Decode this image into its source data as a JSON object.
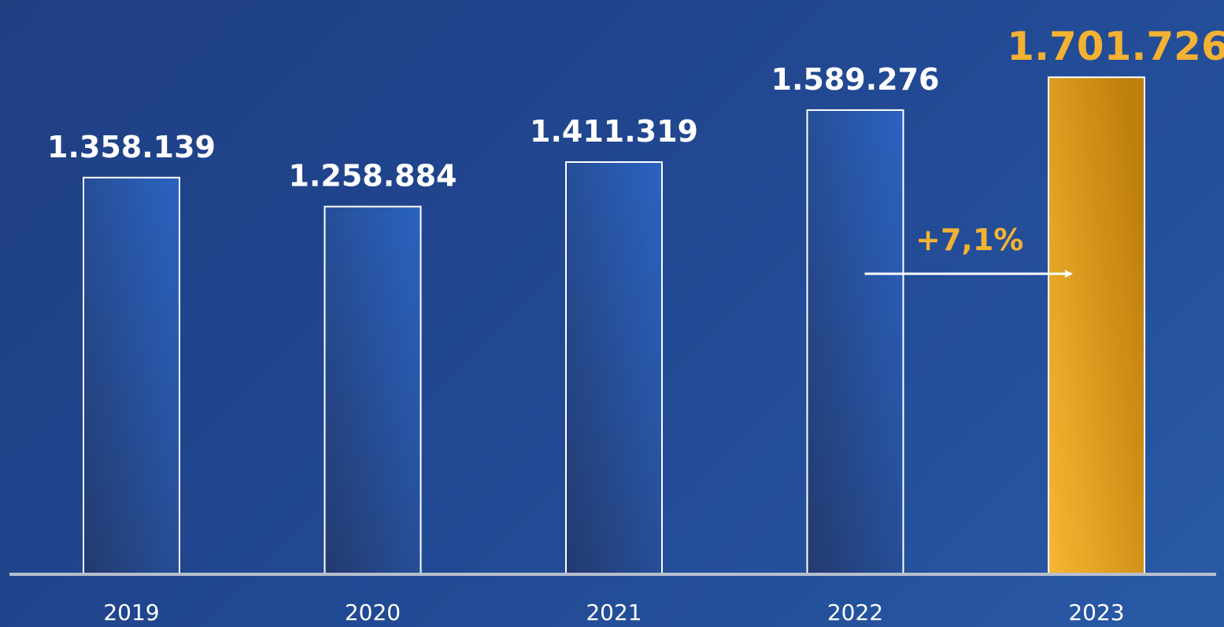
{
  "chart_data": {
    "type": "bar",
    "categories": [
      "2019",
      "2020",
      "2021",
      "2022",
      "2023"
    ],
    "values": [
      1358139,
      1258884,
      1411319,
      1589276,
      1701726
    ],
    "value_labels": [
      "1.358.139",
      "1.258.884",
      "1.411.319",
      "1.589.276",
      "1.701.726"
    ],
    "highlight_index": 4,
    "annotation": {
      "text": "+7,1%",
      "from_index": 3,
      "to_index": 4
    },
    "title": "",
    "xlabel": "",
    "ylabel": "",
    "ylim": [
      0,
      1845000
    ],
    "grid": false,
    "legend": "none",
    "colors": {
      "bar_fill_dark": "#233a6e",
      "bar_fill_light": "#2a63c1",
      "bar_border": "#ffffff",
      "highlight_fill_light": "#f7b733",
      "highlight_fill_dark": "#bf7f0c",
      "highlight_text": "#f3b232",
      "axis": "#b8bfcc",
      "text": "#ffffff"
    }
  }
}
